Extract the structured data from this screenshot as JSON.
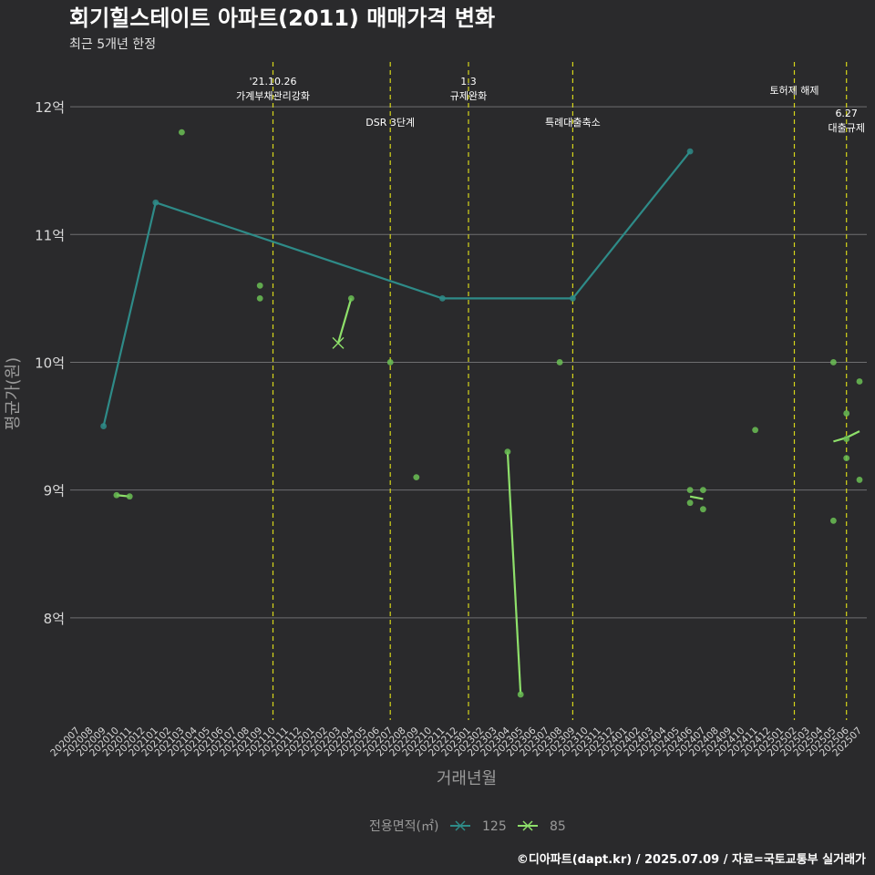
{
  "chart_data": {
    "type": "line",
    "title": "회기힐스테이트 아파트(2011) 매매가격 변화",
    "subtitle": "최근 5개년 한정",
    "xlabel": "거래년월",
    "ylabel": "평균가(원)",
    "ylim": [
      7.2,
      12.35
    ],
    "y_ticks": [
      {
        "value": 8,
        "label": "8억"
      },
      {
        "value": 9,
        "label": "9억"
      },
      {
        "value": 10,
        "label": "10억"
      },
      {
        "value": 11,
        "label": "11억"
      },
      {
        "value": 12,
        "label": "12억"
      }
    ],
    "x_categories": [
      "202007",
      "202008",
      "202009",
      "202010",
      "202011",
      "202012",
      "202101",
      "202102",
      "202103",
      "202104",
      "202105",
      "202106",
      "202107",
      "202108",
      "202109",
      "202110",
      "202111",
      "202112",
      "202201",
      "202202",
      "202203",
      "202204",
      "202205",
      "202206",
      "202207",
      "202208",
      "202209",
      "202210",
      "202211",
      "202212",
      "202301",
      "202302",
      "202303",
      "202304",
      "202305",
      "202306",
      "202307",
      "202308",
      "202309",
      "202310",
      "202311",
      "202312",
      "202401",
      "202402",
      "202403",
      "202404",
      "202405",
      "202406",
      "202407",
      "202408",
      "202409",
      "202410",
      "202411",
      "202412",
      "202501",
      "202502",
      "202503",
      "202504",
      "202505",
      "202506",
      "202507"
    ],
    "legend_title": "전용면적(㎡)",
    "legend_position": "bottom",
    "series": [
      {
        "name": "125",
        "color": "#2e8b88",
        "points": [
          {
            "x": "202009",
            "y": 9.5
          },
          {
            "x": "202101",
            "y": 11.25
          },
          {
            "x": "202211",
            "y": 10.5
          },
          {
            "x": "202309",
            "y": 10.5
          },
          {
            "x": "202406",
            "y": 11.65
          }
        ],
        "scatter": [
          {
            "x": "202009",
            "y": 9.5
          },
          {
            "x": "202101",
            "y": 11.25
          },
          {
            "x": "202211",
            "y": 10.5
          },
          {
            "x": "202309",
            "y": 10.5
          },
          {
            "x": "202406",
            "y": 11.65
          }
        ]
      },
      {
        "name": "85",
        "color": "#8ee06a",
        "points": [
          {
            "x": "202010",
            "y": 8.96
          },
          {
            "x": "202011",
            "y": 8.95
          },
          {
            "x": "202109",
            "y": 10.55
          },
          {
            "x": "202203",
            "y": 10.15
          },
          {
            "x": "202204",
            "y": 10.5
          },
          {
            "x": "202209",
            "y": 9.1
          },
          {
            "x": "202304",
            "y": 9.3
          },
          {
            "x": "202305",
            "y": 7.4
          },
          {
            "x": "202308",
            "y": 10.0
          },
          {
            "x": "202406",
            "y": 8.95
          },
          {
            "x": "202407",
            "y": 8.93
          },
          {
            "x": "202411",
            "y": 9.47
          },
          {
            "x": "202505",
            "y": 9.38
          },
          {
            "x": "202506",
            "y": 9.41
          },
          {
            "x": "202507",
            "y": 9.46
          }
        ],
        "scatter": [
          {
            "x": "202010",
            "y": 8.96
          },
          {
            "x": "202011",
            "y": 8.95
          },
          {
            "x": "202103",
            "y": 11.8
          },
          {
            "x": "202109",
            "y": 10.6
          },
          {
            "x": "202109",
            "y": 10.5
          },
          {
            "x": "202204",
            "y": 10.5
          },
          {
            "x": "202207",
            "y": 10.0
          },
          {
            "x": "202209",
            "y": 9.1
          },
          {
            "x": "202304",
            "y": 9.3
          },
          {
            "x": "202305",
            "y": 7.4
          },
          {
            "x": "202308",
            "y": 10.0
          },
          {
            "x": "202406",
            "y": 9.0
          },
          {
            "x": "202406",
            "y": 8.9
          },
          {
            "x": "202407",
            "y": 9.0
          },
          {
            "x": "202407",
            "y": 8.85
          },
          {
            "x": "202411",
            "y": 9.47
          },
          {
            "x": "202505",
            "y": 10.0
          },
          {
            "x": "202505",
            "y": 8.76
          },
          {
            "x": "202506",
            "y": 9.6
          },
          {
            "x": "202506",
            "y": 9.4
          },
          {
            "x": "202506",
            "y": 9.25
          },
          {
            "x": "202507",
            "y": 9.85
          },
          {
            "x": "202507",
            "y": 9.08
          }
        ],
        "x_marker": {
          "x": "202203",
          "y": 10.15
        }
      }
    ],
    "annotations": [
      {
        "x": "202110",
        "lines": [
          "'21.10.26",
          "가계부채관리강화"
        ],
        "row": 1
      },
      {
        "x": "202207",
        "lines": [
          "DSR 3단계"
        ],
        "row": 3
      },
      {
        "x": "202301",
        "lines": [
          "1.3",
          "규제완화"
        ],
        "row": 1
      },
      {
        "x": "202309",
        "lines": [
          "특례대출축소"
        ],
        "row": 3
      },
      {
        "x": "202502",
        "lines": [
          "토허제 해제"
        ],
        "row": 2
      },
      {
        "x": "202506",
        "lines": [
          "6.27",
          "대출규제"
        ],
        "row": 4
      }
    ],
    "event_line_color": "#d6d61a"
  },
  "footer": {
    "credit": "©디아파트(dapt.kr) / 2025.07.09 / 자료=국토교통부 실거래가"
  }
}
